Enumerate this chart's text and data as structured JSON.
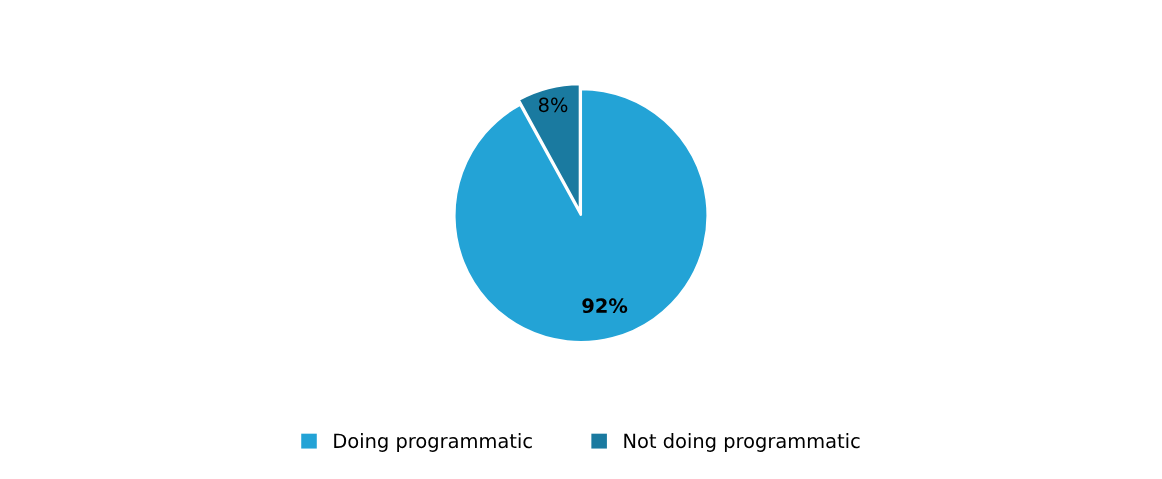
{
  "chart_data": {
    "type": "pie",
    "categories": [
      "Doing programmatic",
      "Not doing programmatic"
    ],
    "values": [
      92,
      8
    ],
    "colors": [
      "#23a3d6",
      "#1a7aa0"
    ],
    "value_labels": [
      "92%",
      "8%"
    ],
    "legend": "bottom"
  }
}
